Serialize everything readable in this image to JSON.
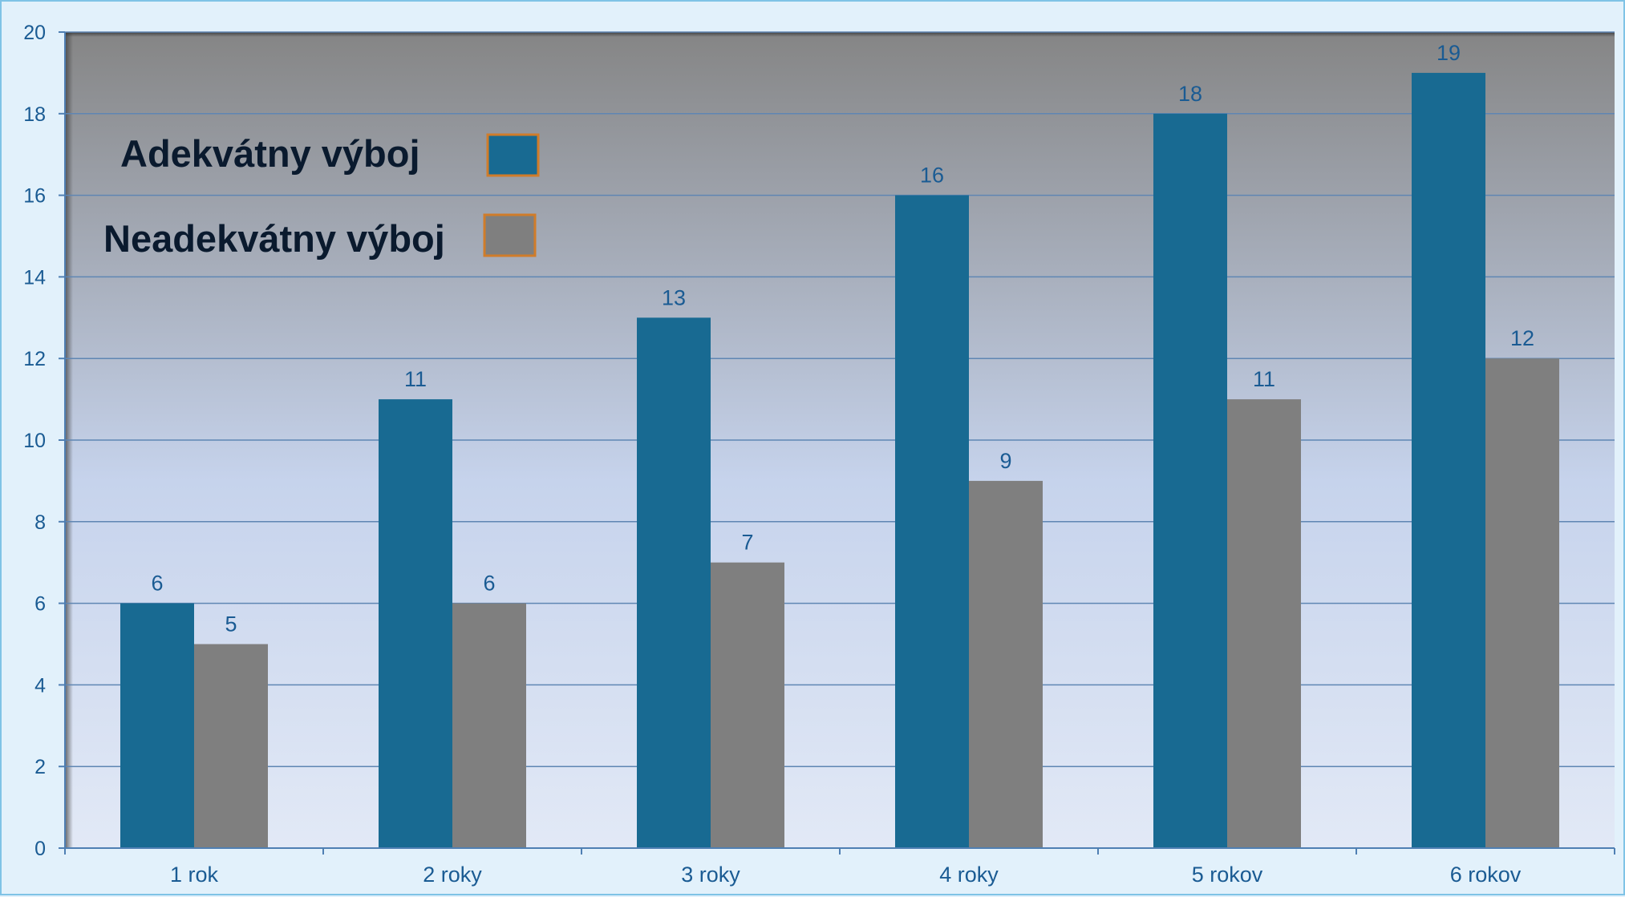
{
  "colors": {
    "series_1": "#186a92",
    "series_2": "#7f7f7f",
    "legend_border": "#d07c2a",
    "axis_text": "#1a5b93",
    "gridline": "#5f86b3",
    "plot_bg_top": "#858585",
    "plot_bg_bottom": "#e2e9f6"
  },
  "chart_data": {
    "type": "bar",
    "categories": [
      "1 rok",
      "2 roky",
      "3 roky",
      "4 roky",
      "5 rokov",
      "6 rokov"
    ],
    "series": [
      {
        "name": "Adekvátny výboj",
        "values": [
          6,
          11,
          13,
          16,
          18,
          19
        ]
      },
      {
        "name": "Neadekvátny výboj",
        "values": [
          5,
          6,
          7,
          9,
          11,
          12
        ]
      }
    ],
    "ylim": [
      0,
      20
    ],
    "yticks": [
      "0",
      "2",
      "4",
      "6",
      "8",
      "10",
      "12",
      "14",
      "16",
      "18",
      "20"
    ],
    "grid": true,
    "legend_position": "top-left",
    "data_labels": true
  }
}
